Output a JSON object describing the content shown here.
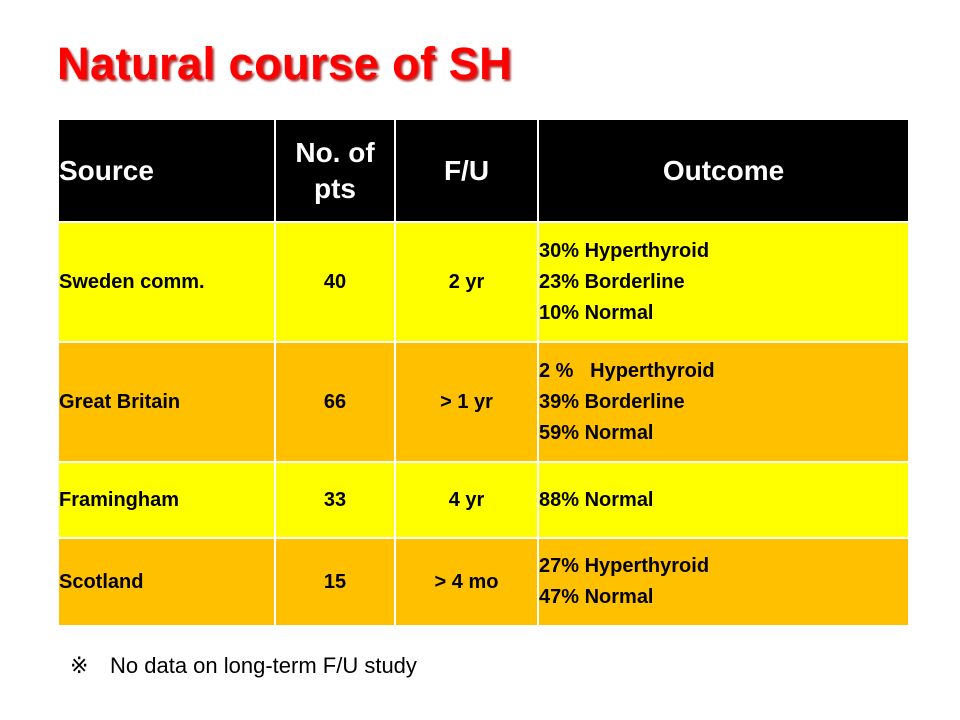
{
  "slide": {
    "title": "Natural course of SH"
  },
  "table": {
    "headers": {
      "source": "Source",
      "pts": "No. of pts",
      "fu": "F/U",
      "outcome": "Outcome"
    },
    "rows": [
      {
        "source": "Sweden comm.",
        "pts": "40",
        "fu": "2 yr",
        "outcome": [
          "30% Hyperthyroid",
          "23% Borderline",
          "10% Normal"
        ]
      },
      {
        "source": "Great  Britain",
        "pts": "66",
        "fu": "> 1 yr",
        "outcome": [
          "2 %   Hyperthyroid",
          "39% Borderline",
          "59% Normal"
        ]
      },
      {
        "source": "Framingham",
        "pts": "33",
        "fu": "4 yr",
        "outcome": [
          "88% Normal"
        ]
      },
      {
        "source": "Scotland",
        "pts": "15",
        "fu": "> 4 mo",
        "outcome": [
          "27% Hyperthyroid",
          "47% Normal"
        ]
      }
    ],
    "colors": {
      "header_bg": "#000000",
      "row_yellow": "#ffff00",
      "row_orange": "#ffc000",
      "title_red": "#ff0000"
    }
  },
  "footnote": {
    "mark": "※",
    "text": "No data on long-term F/U study"
  }
}
